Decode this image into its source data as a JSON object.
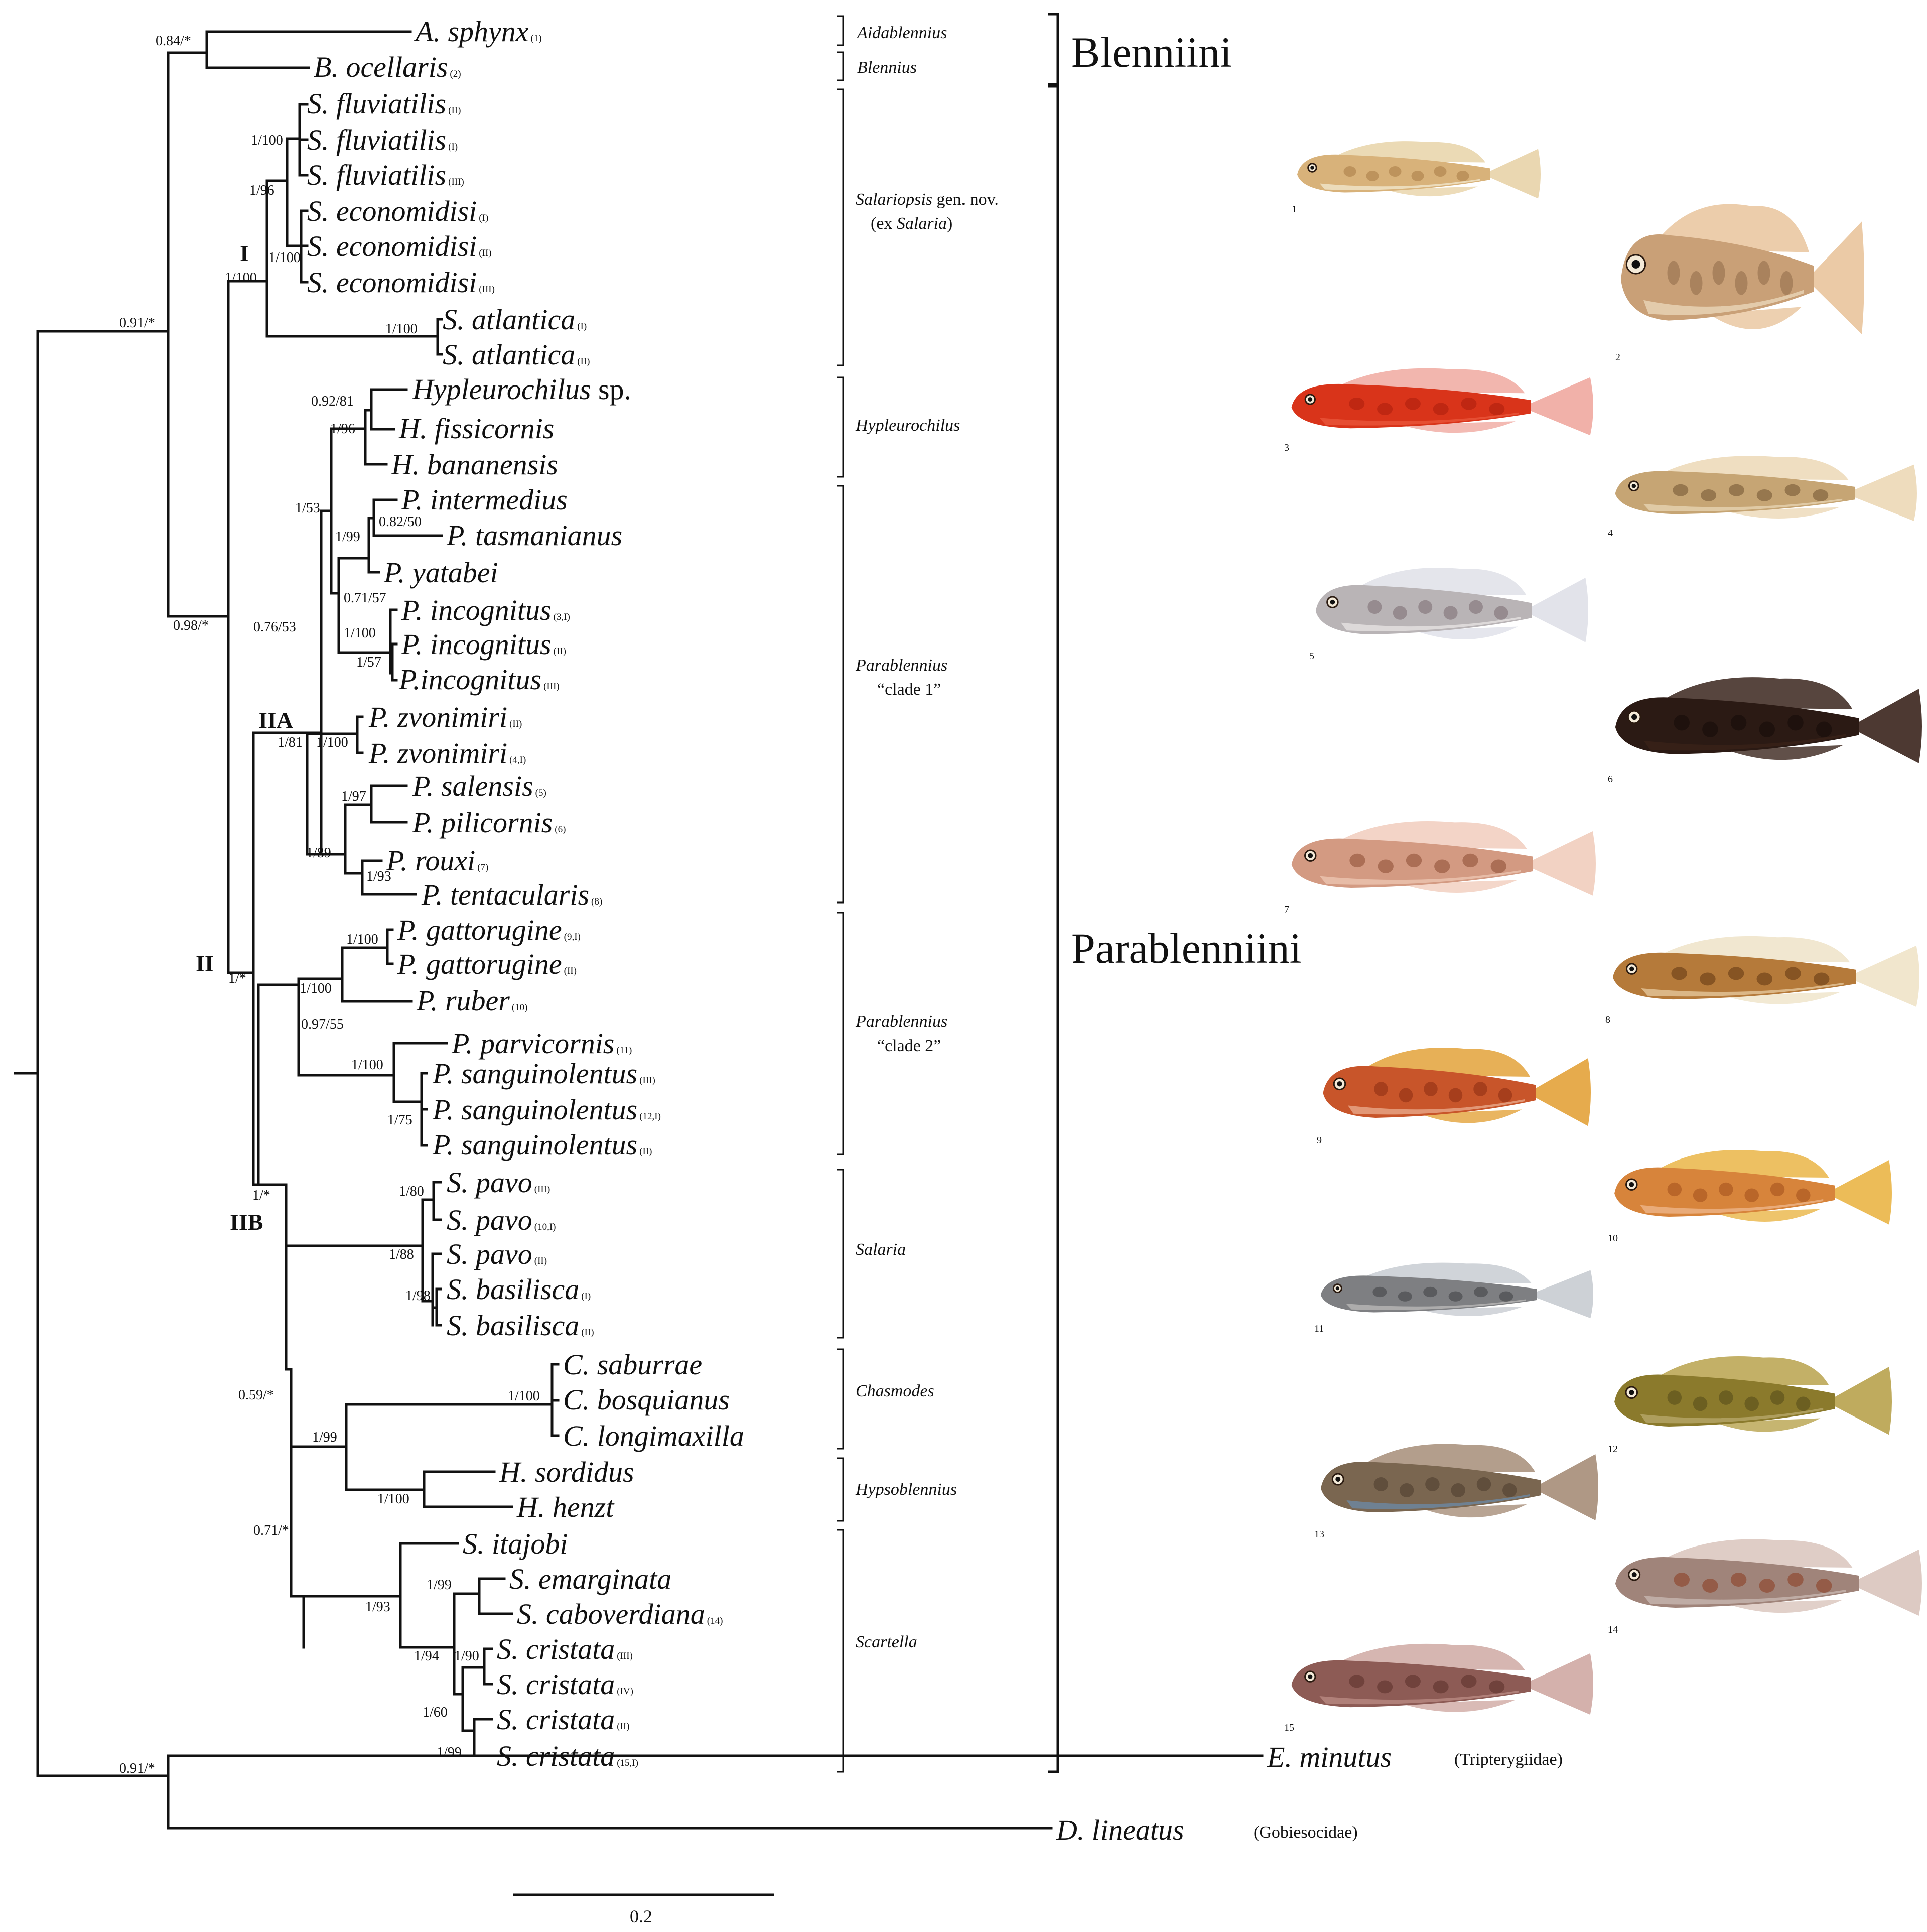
{
  "figure": {
    "taxa": [
      {
        "id": "a_sphynx",
        "genus": "A.",
        "species": "sphynx",
        "voucher": "(1)"
      },
      {
        "id": "b_ocellaris",
        "genus": "B.",
        "species": "ocellaris",
        "voucher": "(2)"
      },
      {
        "id": "s_fluv_ii",
        "genus": "S.",
        "species": "fluviatilis",
        "voucher": "(II)"
      },
      {
        "id": "s_fluv_i",
        "genus": "S.",
        "species": "fluviatilis",
        "voucher": "(I)"
      },
      {
        "id": "s_fluv_iii",
        "genus": "S.",
        "species": "fluviatilis",
        "voucher": "(III)"
      },
      {
        "id": "s_econ_i",
        "genus": "S.",
        "species": "economidisi",
        "voucher": "(I)"
      },
      {
        "id": "s_econ_ii",
        "genus": "S.",
        "species": "economidisi",
        "voucher": "(II)"
      },
      {
        "id": "s_econ_iii",
        "genus": "S.",
        "species": "economidisi",
        "voucher": "(III)"
      },
      {
        "id": "s_atl_i",
        "genus": "S.",
        "species": "atlantica",
        "voucher": "(I)"
      },
      {
        "id": "s_atl_ii",
        "genus": "S.",
        "species": "atlantica",
        "voucher": "(II)"
      },
      {
        "id": "hyp_sp",
        "genus": "Hypleurochilus",
        "species": "",
        "suffix": "sp.",
        "voucher": ""
      },
      {
        "id": "h_fiss",
        "genus": "H.",
        "species": "fissicornis",
        "voucher": ""
      },
      {
        "id": "h_banan",
        "genus": "H.",
        "species": "bananensis",
        "voucher": ""
      },
      {
        "id": "p_inter",
        "genus": "P.",
        "species": "intermedius",
        "voucher": ""
      },
      {
        "id": "p_tasm",
        "genus": "P.",
        "species": "tasmanianus",
        "voucher": ""
      },
      {
        "id": "p_yat",
        "genus": "P.",
        "species": "yatabei",
        "voucher": ""
      },
      {
        "id": "p_inc_3i",
        "genus": "P.",
        "species": "incognitus",
        "voucher": "(3,I)"
      },
      {
        "id": "p_inc_ii",
        "genus": "P.",
        "species": "incognitus",
        "voucher": "(II)"
      },
      {
        "id": "p_inc_iii",
        "genus": "P.incognitus",
        "species": "",
        "voucher": "(III)"
      },
      {
        "id": "p_zvo_ii",
        "genus": "P.",
        "species": "zvonimiri",
        "voucher": "(II)"
      },
      {
        "id": "p_zvo_4i",
        "genus": "P.",
        "species": "zvonimiri",
        "voucher": "(4,I)"
      },
      {
        "id": "p_sal",
        "genus": "P.",
        "species": "salensis",
        "voucher": "(5)"
      },
      {
        "id": "p_pil",
        "genus": "P.",
        "species": "pilicornis",
        "voucher": "(6)"
      },
      {
        "id": "p_rou",
        "genus": "P.",
        "species": "rouxi",
        "voucher": "(7)"
      },
      {
        "id": "p_ten",
        "genus": "P.",
        "species": "tentacularis",
        "voucher": "(8)"
      },
      {
        "id": "p_gat_9i",
        "genus": "P.",
        "species": "gattorugine",
        "voucher": "(9,I)"
      },
      {
        "id": "p_gat_ii",
        "genus": "P.",
        "species": "gattorugine",
        "voucher": "(II)"
      },
      {
        "id": "p_rub",
        "genus": "P.",
        "species": "ruber",
        "voucher": "(10)"
      },
      {
        "id": "p_par",
        "genus": "P.",
        "species": "parvicornis",
        "voucher": "(11)"
      },
      {
        "id": "p_san_iii",
        "genus": "P.",
        "species": "sanguinolentus",
        "voucher": "(III)"
      },
      {
        "id": "p_san_12i",
        "genus": "P.",
        "species": "sanguinolentus",
        "voucher": "(12,I)"
      },
      {
        "id": "p_san_ii",
        "genus": "P.",
        "species": "sanguinolentus",
        "voucher": "(II)"
      },
      {
        "id": "s_pav_iii",
        "genus": "S.",
        "species": "pavo",
        "voucher": "(III)"
      },
      {
        "id": "s_pav_10i",
        "genus": "S.",
        "species": "pavo",
        "voucher": "(10,I)"
      },
      {
        "id": "s_pav_ii",
        "genus": "S.",
        "species": "pavo",
        "voucher": "(II)"
      },
      {
        "id": "s_bas_i",
        "genus": "S.",
        "species": "basilisca",
        "voucher": "(I)"
      },
      {
        "id": "s_bas_ii",
        "genus": "S.",
        "species": "basilisca",
        "voucher": "(II)"
      },
      {
        "id": "c_sab",
        "genus": "C.",
        "species": "saburrae",
        "voucher": ""
      },
      {
        "id": "c_bos",
        "genus": "C.",
        "species": "bosquianus",
        "voucher": ""
      },
      {
        "id": "c_lon",
        "genus": "C.",
        "species": "longimaxilla",
        "voucher": ""
      },
      {
        "id": "h_sor",
        "genus": "H.",
        "species": "sordidus",
        "voucher": ""
      },
      {
        "id": "h_hen",
        "genus": "H.",
        "species": "henzt",
        "voucher": ""
      },
      {
        "id": "s_ita",
        "genus": "S.",
        "species": "itajobi",
        "voucher": ""
      },
      {
        "id": "s_ema",
        "genus": "S.",
        "species": "emarginata",
        "voucher": ""
      },
      {
        "id": "s_cab",
        "genus": "S.",
        "species": "caboverdiana",
        "voucher": "(14)"
      },
      {
        "id": "s_cri_iii",
        "genus": "S.",
        "species": "cristata",
        "voucher": "(III)"
      },
      {
        "id": "s_cri_iv",
        "genus": "S.",
        "species": "cristata",
        "voucher": "(IV)"
      },
      {
        "id": "s_cri_ii",
        "genus": "S.",
        "species": "cristata",
        "voucher": "(II)"
      },
      {
        "id": "s_cri_15i",
        "genus": "S.",
        "species": "cristata",
        "voucher": "(15,I)"
      }
    ],
    "outgroups": [
      {
        "id": "e_min",
        "genus": "E.",
        "species": "minutus",
        "family": "(Tripterygiidae)"
      },
      {
        "id": "d_lin",
        "genus": "D.",
        "species": "lineatus",
        "family": "(Gobiesocidae)"
      }
    ],
    "support_values": [
      "0.84/*",
      "0.91/*",
      "0.98/*",
      "1/100",
      "1/96",
      "1/100",
      "1/100",
      "1/100",
      "0.92/81",
      "1/96",
      "1/53",
      "0.82/50",
      "1/99",
      "0.71/57",
      "1/100",
      "1/57",
      "0.76/53",
      "1/81",
      "1/100",
      "1/97",
      "1/89",
      "1/93",
      "1/100",
      "1/100",
      "0.97/55",
      "1/100",
      "1/75",
      "1/*",
      "1/*",
      "1/80",
      "1/88",
      "1/98",
      "0.59/*",
      "1/100",
      "1/99",
      "1/100",
      "0.71/*",
      "1/99",
      "1/93",
      "1/94",
      "1/90",
      "1/60",
      "1/99",
      "0.91/*"
    ],
    "clade_labels": {
      "I": "I",
      "II": "II",
      "IIA": "IIA",
      "IIB": "IIB"
    },
    "genus_groups": [
      {
        "id": "aidablennius",
        "name": "Aidablennius"
      },
      {
        "id": "blennius",
        "name": "Blennius"
      },
      {
        "id": "salariopsis",
        "name_italic": "Salariopsis",
        "name_plain": " gen. nov.",
        "line2_plain_a": "(ex ",
        "line2_italic": "Salaria",
        "line2_plain_b": ")"
      },
      {
        "id": "hypleurochilus",
        "name": "Hypleurochilus"
      },
      {
        "id": "parab1",
        "name_italic": "Parablennius",
        "line2": "“clade 1”"
      },
      {
        "id": "parab2",
        "name_italic": "Parablennius",
        "line2": "“clade 2”"
      },
      {
        "id": "salaria",
        "name": "Salaria"
      },
      {
        "id": "chasmodes",
        "name": "Chasmodes"
      },
      {
        "id": "hypsoblennius",
        "name": "Hypsoblennius"
      },
      {
        "id": "scartella",
        "name": "Scartella"
      }
    ],
    "tribes": {
      "blenniini": "Blenniini",
      "parablenniini": "Parablenniini"
    },
    "scale_bar": {
      "label": "0.2",
      "value": 0.2
    },
    "photos": [
      {
        "num": "1",
        "name": "fish-photo-1",
        "body": "#d8b27a",
        "fin": "#e8d3a8",
        "belly": "#f1e6cc",
        "mark": "#a77a44"
      },
      {
        "num": "2",
        "name": "fish-photo-2",
        "body": "#c9a077",
        "fin": "#e9c49c",
        "belly": "#ead6b8",
        "mark": "#8e6a48"
      },
      {
        "num": "3",
        "name": "fish-photo-3",
        "body": "#d9341a",
        "fin": "#f0a9a0",
        "belly": "#e8553a",
        "mark": "#a91d0d"
      },
      {
        "num": "4",
        "name": "fish-photo-4",
        "body": "#c6a574",
        "fin": "#ecd8b6",
        "belly": "#e6d3b1",
        "mark": "#6f5230"
      },
      {
        "num": "5",
        "name": "fish-photo-5",
        "body": "#b9b4b6",
        "fin": "#dfe0e8",
        "belly": "#e6e2e2",
        "mark": "#7a6a70"
      },
      {
        "num": "6",
        "name": "fish-photo-6",
        "body": "#2b1a14",
        "fin": "#3a241c",
        "belly": "#3a2218",
        "mark": "#140b08"
      },
      {
        "num": "7",
        "name": "fish-photo-7",
        "body": "#d39a82",
        "fin": "#f1cdbd",
        "belly": "#ecc4b0",
        "mark": "#8a4a32"
      },
      {
        "num": "8",
        "name": "fish-photo-8",
        "body": "#b57a3a",
        "fin": "#efe3c8",
        "belly": "#e5c79b",
        "mark": "#5e3410"
      },
      {
        "num": "9",
        "name": "fish-photo-9",
        "body": "#c8552a",
        "fin": "#e3a23a",
        "belly": "#e9a889",
        "mark": "#8a2b10"
      },
      {
        "num": "10",
        "name": "fish-photo-10",
        "body": "#d7843b",
        "fin": "#eab546",
        "belly": "#edb58a",
        "mark": "#a14e1c"
      },
      {
        "num": "11",
        "name": "fish-photo-11",
        "body": "#7e7f82",
        "fin": "#c8ccd2",
        "belly": "#b9b8b6",
        "mark": "#3d3e42"
      },
      {
        "num": "12",
        "name": "fish-photo-12",
        "body": "#8b7a2c",
        "fin": "#b8a24c",
        "belly": "#b6a86a",
        "mark": "#54481a"
      },
      {
        "num": "13",
        "name": "fish-photo-13",
        "body": "#7a6650",
        "fin": "#a68d78",
        "belly": "#6d88a2",
        "mark": "#4a3a2c"
      },
      {
        "num": "14",
        "name": "fish-photo-14",
        "body": "#a0847a",
        "fin": "#d9c4bc",
        "belly": "#c7b6b0",
        "mark": "#8a3b1e"
      },
      {
        "num": "15",
        "name": "fish-photo-15",
        "body": "#8d5b55",
        "fin": "#cfa9a3",
        "belly": "#b98a82",
        "mark": "#5a2e28"
      }
    ]
  }
}
